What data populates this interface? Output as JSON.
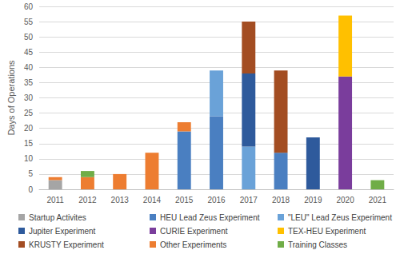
{
  "chart_data": {
    "type": "bar",
    "y_label": "Days of Operations",
    "categories": [
      "2011",
      "2012",
      "2013",
      "2014",
      "2015",
      "2016",
      "2017",
      "2018",
      "2019",
      "2020",
      "2021"
    ],
    "series": [
      {
        "name": "Startup Activites",
        "color": "#a5a5a5",
        "values": [
          3,
          null,
          null,
          null,
          null,
          null,
          null,
          null,
          null,
          null,
          null
        ]
      },
      {
        "name": "HEU Lead Zeus Experiment",
        "color": "#4a7fc1",
        "values": [
          null,
          null,
          null,
          null,
          19,
          24,
          null,
          12,
          null,
          null,
          null
        ]
      },
      {
        "name": "\"LEU\" Lead Zeus Experiment",
        "color": "#6aa2d8",
        "values": [
          null,
          null,
          null,
          null,
          null,
          15,
          14,
          null,
          null,
          null,
          null
        ]
      },
      {
        "name": "Jupiter Experiment",
        "color": "#2e5a9c",
        "values": [
          null,
          null,
          null,
          null,
          null,
          null,
          24,
          null,
          17,
          null,
          null
        ]
      },
      {
        "name": "CURIE Experiment",
        "color": "#7a3d9c",
        "values": [
          null,
          null,
          null,
          null,
          null,
          null,
          null,
          null,
          null,
          37,
          null
        ]
      },
      {
        "name": "TEX-HEU Experiment",
        "color": "#ffc000",
        "values": [
          null,
          null,
          null,
          null,
          null,
          null,
          null,
          null,
          null,
          20,
          null
        ]
      },
      {
        "name": "KRUSTY Experiment",
        "color": "#a34d22",
        "values": [
          null,
          null,
          null,
          null,
          null,
          null,
          17,
          27,
          null,
          null,
          null
        ]
      },
      {
        "name": "Other Experiments",
        "color": "#ed7d31",
        "values": [
          1,
          4,
          5,
          12,
          3,
          null,
          null,
          null,
          null,
          null,
          null
        ]
      },
      {
        "name": "Training Classes",
        "color": "#70ad47",
        "values": [
          null,
          2,
          null,
          null,
          null,
          null,
          null,
          null,
          null,
          null,
          3
        ]
      }
    ],
    "ylim": [
      0,
      60
    ],
    "yticks": [
      0,
      5,
      10,
      15,
      20,
      25,
      30,
      35,
      40,
      45,
      50,
      55,
      60
    ],
    "stacked": true,
    "grid": true,
    "legend": "bottom"
  }
}
